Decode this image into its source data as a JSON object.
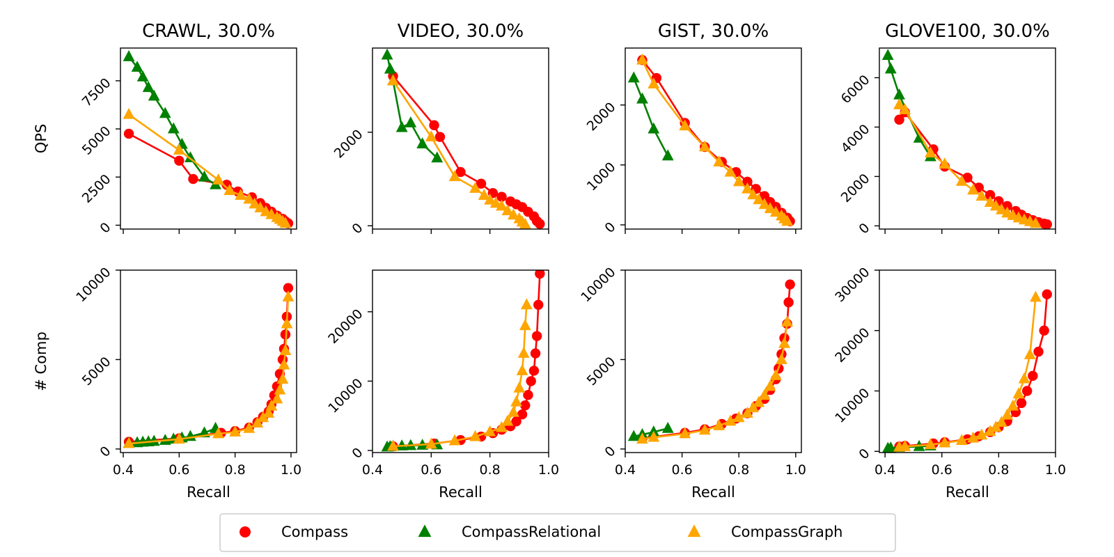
{
  "series_meta": [
    {
      "key": "compass",
      "name": "Compass",
      "color": "#ff0000",
      "marker": "circle"
    },
    {
      "key": "relational",
      "name": "CompassRelational",
      "color": "#008000",
      "marker": "triangle"
    },
    {
      "key": "graph",
      "name": "CompassGraph",
      "color": "#ffa500",
      "marker": "triangle"
    }
  ],
  "chart_data": [
    {
      "type": "line",
      "row": "qps",
      "dataset": "CRAWL",
      "title": "CRAWL, 30.0%",
      "xlabel": "",
      "ylabel": "QPS",
      "xlim": [
        0.39,
        1.02
      ],
      "ylim": [
        -200,
        9200
      ],
      "xticks": [
        0.4,
        0.6,
        0.8,
        1.0
      ],
      "show_xticklabels": false,
      "yticks": [
        0,
        2500,
        5000,
        7500
      ],
      "series": [
        {
          "name": "Compass",
          "x": [
            0.42,
            0.6,
            0.65,
            0.77,
            0.81,
            0.86,
            0.89,
            0.91,
            0.93,
            0.95,
            0.97,
            0.98,
            0.99
          ],
          "y": [
            4750,
            3350,
            2400,
            2100,
            1750,
            1450,
            1150,
            900,
            700,
            500,
            330,
            200,
            100
          ]
        },
        {
          "name": "CompassRelational",
          "x": [
            0.42,
            0.45,
            0.47,
            0.49,
            0.51,
            0.55,
            0.58,
            0.61,
            0.64,
            0.69,
            0.73
          ],
          "y": [
            8750,
            8200,
            7700,
            7150,
            6700,
            5800,
            5000,
            4200,
            3500,
            2500,
            2100
          ]
        },
        {
          "name": "CompassGraph",
          "x": [
            0.42,
            0.6,
            0.74,
            0.78,
            0.82,
            0.85,
            0.87,
            0.89,
            0.91,
            0.93,
            0.95,
            0.96,
            0.97,
            0.98
          ],
          "y": [
            5750,
            3900,
            2350,
            1800,
            1550,
            1350,
            1100,
            900,
            700,
            550,
            400,
            300,
            200,
            100
          ]
        }
      ]
    },
    {
      "type": "line",
      "row": "qps",
      "dataset": "VIDEO",
      "title": "VIDEO, 30.0%",
      "xlabel": "",
      "ylabel": "",
      "xlim": [
        0.4,
        1.0
      ],
      "ylim": [
        -70,
        3800
      ],
      "xticks": [
        0.4,
        0.6,
        0.8,
        1.0
      ],
      "show_xticklabels": false,
      "yticks": [
        0,
        2000
      ],
      "series": [
        {
          "name": "Compass",
          "x": [
            0.47,
            0.61,
            0.63,
            0.7,
            0.77,
            0.81,
            0.84,
            0.87,
            0.89,
            0.91,
            0.93,
            0.95,
            0.96,
            0.97
          ],
          "y": [
            3200,
            2150,
            1900,
            1150,
            900,
            700,
            620,
            520,
            460,
            400,
            300,
            200,
            100,
            40
          ]
        },
        {
          "name": "CompassRelational",
          "x": [
            0.45,
            0.46,
            0.47,
            0.5,
            0.53,
            0.57,
            0.62
          ],
          "y": [
            3650,
            3350,
            3100,
            2100,
            2200,
            1750,
            1450
          ]
        },
        {
          "name": "CompassGraph",
          "x": [
            0.47,
            0.6,
            0.68,
            0.75,
            0.78,
            0.8,
            0.82,
            0.84,
            0.86,
            0.88,
            0.9,
            0.91,
            0.92
          ],
          "y": [
            3100,
            1900,
            1050,
            800,
            650,
            550,
            480,
            420,
            320,
            230,
            150,
            80,
            30
          ]
        }
      ]
    },
    {
      "type": "line",
      "row": "qps",
      "dataset": "GIST",
      "title": "GIST, 30.0%",
      "xlabel": "",
      "ylabel": "",
      "xlim": [
        0.4,
        1.02
      ],
      "ylim": [
        -70,
        2950
      ],
      "xticks": [
        0.4,
        0.6,
        0.8,
        1.0
      ],
      "show_xticklabels": false,
      "yticks": [
        0,
        1000,
        2000
      ],
      "series": [
        {
          "name": "Compass",
          "x": [
            0.46,
            0.51,
            0.61,
            0.68,
            0.74,
            0.79,
            0.83,
            0.86,
            0.89,
            0.91,
            0.93,
            0.95,
            0.97,
            0.98
          ],
          "y": [
            2750,
            2450,
            1700,
            1300,
            1050,
            880,
            720,
            600,
            480,
            380,
            300,
            200,
            120,
            60
          ]
        },
        {
          "name": "CompassRelational",
          "x": [
            0.43,
            0.46,
            0.5,
            0.55
          ],
          "y": [
            2450,
            2100,
            1600,
            1150
          ]
        },
        {
          "name": "CompassGraph",
          "x": [
            0.46,
            0.5,
            0.61,
            0.68,
            0.73,
            0.77,
            0.8,
            0.83,
            0.85,
            0.87,
            0.89,
            0.91,
            0.93,
            0.95,
            0.96,
            0.97
          ],
          "y": [
            2750,
            2350,
            1650,
            1300,
            1050,
            880,
            720,
            600,
            500,
            420,
            340,
            270,
            210,
            150,
            100,
            60
          ]
        }
      ]
    },
    {
      "type": "line",
      "row": "qps",
      "dataset": "GLOVE100",
      "title": "GLOVE100, 30.0%",
      "xlabel": "",
      "ylabel": "",
      "xlim": [
        0.38,
        1.0
      ],
      "ylim": [
        -130,
        7200
      ],
      "xticks": [
        0.4,
        0.6,
        0.8,
        1.0
      ],
      "show_xticklabels": false,
      "yticks": [
        0,
        2000,
        4000,
        6000
      ],
      "series": [
        {
          "name": "Compass",
          "x": [
            0.45,
            0.47,
            0.57,
            0.61,
            0.69,
            0.73,
            0.77,
            0.8,
            0.83,
            0.86,
            0.88,
            0.9,
            0.92,
            0.94,
            0.96,
            0.97
          ],
          "y": [
            4300,
            4600,
            3100,
            2400,
            1950,
            1550,
            1250,
            1000,
            800,
            600,
            450,
            320,
            230,
            150,
            90,
            60
          ]
        },
        {
          "name": "CompassRelational",
          "x": [
            0.41,
            0.42,
            0.45,
            0.52,
            0.56
          ],
          "y": [
            6900,
            6350,
            5300,
            3550,
            2800
          ]
        },
        {
          "name": "CompassGraph",
          "x": [
            0.45,
            0.47,
            0.56,
            0.61,
            0.67,
            0.71,
            0.74,
            0.77,
            0.79,
            0.81,
            0.83,
            0.85,
            0.87,
            0.89,
            0.91,
            0.93
          ],
          "y": [
            4900,
            4700,
            2950,
            2500,
            1800,
            1450,
            1200,
            950,
            800,
            650,
            520,
            420,
            320,
            240,
            170,
            100
          ]
        }
      ]
    },
    {
      "type": "line",
      "row": "comp",
      "dataset": "CRAWL",
      "title": "",
      "xlabel": "Recall",
      "ylabel": "# Comp",
      "xlim": [
        0.39,
        1.02
      ],
      "ylim": [
        -200,
        10000
      ],
      "xticks": [
        0.4,
        0.6,
        0.8,
        1.0
      ],
      "show_xticklabels": true,
      "xticklabels": [
        "0.4",
        "0.6",
        "0.8",
        "1.0"
      ],
      "yticks": [
        0,
        5000,
        10000
      ],
      "series": [
        {
          "name": "Compass",
          "x": [
            0.42,
            0.6,
            0.75,
            0.8,
            0.85,
            0.88,
            0.9,
            0.92,
            0.93,
            0.94,
            0.95,
            0.96,
            0.97,
            0.975,
            0.98,
            0.985,
            0.99
          ],
          "y": [
            400,
            600,
            900,
            1000,
            1200,
            1500,
            1800,
            2100,
            2500,
            3000,
            3500,
            4200,
            5000,
            5600,
            6400,
            7400,
            9000
          ]
        },
        {
          "name": "CompassRelational",
          "x": [
            0.42,
            0.45,
            0.47,
            0.49,
            0.51,
            0.55,
            0.58,
            0.61,
            0.64,
            0.69,
            0.73
          ],
          "y": [
            320,
            350,
            380,
            400,
            430,
            480,
            550,
            620,
            700,
            900,
            1150
          ]
        },
        {
          "name": "CompassGraph",
          "x": [
            0.42,
            0.6,
            0.74,
            0.8,
            0.85,
            0.88,
            0.9,
            0.92,
            0.93,
            0.95,
            0.96,
            0.97,
            0.975,
            0.98,
            0.985,
            0.99
          ],
          "y": [
            300,
            550,
            850,
            950,
            1150,
            1450,
            1750,
            2000,
            2400,
            2800,
            3300,
            3900,
            4700,
            5500,
            7000,
            8500
          ]
        }
      ]
    },
    {
      "type": "line",
      "row": "comp",
      "dataset": "VIDEO",
      "title": "",
      "xlabel": "Recall",
      "ylabel": "",
      "xlim": [
        0.4,
        1.0
      ],
      "ylim": [
        -300,
        26000
      ],
      "xticks": [
        0.4,
        0.6,
        0.8,
        1.0
      ],
      "show_xticklabels": true,
      "xticklabels": [
        "0.4",
        "0.6",
        "0.8",
        "1.0"
      ],
      "yticks": [
        0,
        10000,
        20000
      ],
      "series": [
        {
          "name": "Compass",
          "x": [
            0.47,
            0.61,
            0.7,
            0.77,
            0.81,
            0.84,
            0.87,
            0.89,
            0.91,
            0.92,
            0.93,
            0.94,
            0.95,
            0.955,
            0.96,
            0.965,
            0.97
          ],
          "y": [
            600,
            1000,
            1500,
            2000,
            2500,
            3000,
            3500,
            4200,
            5200,
            6500,
            8000,
            10000,
            11500,
            14000,
            16500,
            21000,
            25500
          ]
        },
        {
          "name": "CompassRelational",
          "x": [
            0.45,
            0.46,
            0.47,
            0.5,
            0.53,
            0.57,
            0.62
          ],
          "y": [
            500,
            550,
            600,
            650,
            700,
            750,
            800
          ]
        },
        {
          "name": "CompassGraph",
          "x": [
            0.47,
            0.6,
            0.68,
            0.75,
            0.8,
            0.84,
            0.86,
            0.88,
            0.89,
            0.9,
            0.91,
            0.915,
            0.92,
            0.925
          ],
          "y": [
            600,
            900,
            1400,
            2000,
            2700,
            3300,
            4200,
            5500,
            7000,
            9000,
            11500,
            14000,
            18000,
            21000
          ]
        }
      ]
    },
    {
      "type": "line",
      "row": "comp",
      "dataset": "GIST",
      "title": "",
      "xlabel": "Recall",
      "ylabel": "",
      "xlim": [
        0.4,
        1.02
      ],
      "ylim": [
        -200,
        10000
      ],
      "xticks": [
        0.4,
        0.6,
        0.8,
        1.0
      ],
      "show_xticklabels": true,
      "xticklabels": [
        "0.4",
        "0.6",
        "0.8",
        "1.0"
      ],
      "yticks": [
        0,
        5000,
        10000
      ],
      "series": [
        {
          "name": "Compass",
          "x": [
            0.46,
            0.61,
            0.68,
            0.74,
            0.79,
            0.83,
            0.86,
            0.89,
            0.91,
            0.93,
            0.94,
            0.95,
            0.96,
            0.97,
            0.975,
            0.98
          ],
          "y": [
            600,
            900,
            1100,
            1400,
            1700,
            2000,
            2400,
            2800,
            3300,
            3900,
            4500,
            5300,
            6200,
            7000,
            8200,
            9200
          ]
        },
        {
          "name": "CompassRelational",
          "x": [
            0.43,
            0.46,
            0.5,
            0.55
          ],
          "y": [
            700,
            800,
            950,
            1150
          ]
        },
        {
          "name": "CompassGraph",
          "x": [
            0.46,
            0.5,
            0.61,
            0.68,
            0.73,
            0.77,
            0.8,
            0.83,
            0.85,
            0.87,
            0.89,
            0.91,
            0.93,
            0.95,
            0.96,
            0.97
          ],
          "y": [
            550,
            650,
            850,
            1050,
            1300,
            1550,
            1750,
            2000,
            2300,
            2600,
            3000,
            3500,
            4100,
            5000,
            5900,
            7100
          ]
        }
      ]
    },
    {
      "type": "line",
      "row": "comp",
      "dataset": "GLOVE100",
      "title": "",
      "xlabel": "Recall",
      "ylabel": "",
      "xlim": [
        0.38,
        1.0
      ],
      "ylim": [
        -200,
        30000
      ],
      "xticks": [
        0.4,
        0.6,
        0.8,
        1.0
      ],
      "show_xticklabels": true,
      "xticklabels": [
        "0.4",
        "0.6",
        "0.8",
        "1.0"
      ],
      "yticks": [
        0,
        10000,
        20000,
        30000
      ],
      "series": [
        {
          "name": "Compass",
          "x": [
            0.45,
            0.47,
            0.57,
            0.61,
            0.69,
            0.73,
            0.77,
            0.8,
            0.83,
            0.86,
            0.88,
            0.9,
            0.92,
            0.94,
            0.96,
            0.97
          ],
          "y": [
            800,
            900,
            1300,
            1500,
            2000,
            2500,
            3200,
            4000,
            5000,
            6500,
            8000,
            10000,
            12500,
            16500,
            20000,
            26000
          ]
        },
        {
          "name": "CompassRelational",
          "x": [
            0.41,
            0.42,
            0.45,
            0.52,
            0.56
          ],
          "y": [
            500,
            550,
            650,
            800,
            900
          ]
        },
        {
          "name": "CompassGraph",
          "x": [
            0.45,
            0.47,
            0.56,
            0.61,
            0.67,
            0.71,
            0.74,
            0.77,
            0.79,
            0.81,
            0.83,
            0.85,
            0.87,
            0.89,
            0.91,
            0.93
          ],
          "y": [
            700,
            800,
            1100,
            1400,
            1800,
            2200,
            2700,
            3300,
            4000,
            4800,
            6000,
            7500,
            9500,
            12000,
            16000,
            25500
          ]
        }
      ]
    }
  ]
}
